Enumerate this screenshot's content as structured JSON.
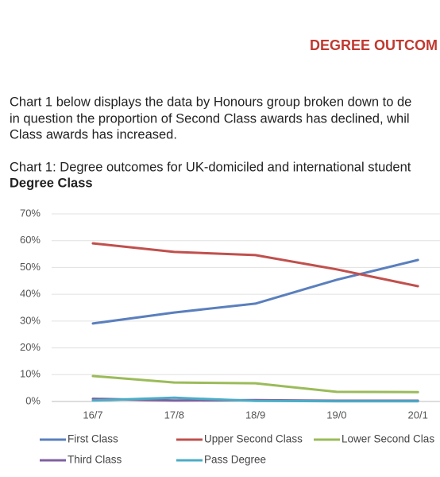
{
  "heading": "DEGREE OUTCOM",
  "paragraph": [
    "Chart 1 below displays the data by Honours group broken down to de",
    "in question the proportion of Second Class awards has declined, whil",
    "Class awards has increased."
  ],
  "chart_data": {
    "type": "line",
    "title": "Chart 1: Degree outcomes for UK-domiciled and international student",
    "subtitle": "Degree Class",
    "categories": [
      "16/7",
      "17/8",
      "18/9",
      "19/0",
      "20/1"
    ],
    "series": [
      {
        "name": "First Class",
        "color": "#5a7fbd",
        "values": [
          29.1,
          33.2,
          36.5,
          45.4,
          52.8
        ]
      },
      {
        "name": "Upper Second Class",
        "color": "#c0504d",
        "values": [
          59.0,
          55.8,
          54.6,
          49.3,
          43.0
        ]
      },
      {
        "name": "Lower Second Clas",
        "color": "#9bbb59",
        "values": [
          9.5,
          7.1,
          6.8,
          3.6,
          3.5
        ]
      },
      {
        "name": "Third Class",
        "color": "#7f60a0",
        "values": [
          1.0,
          0.4,
          0.5,
          0.3,
          0.3
        ]
      },
      {
        "name": "Pass Degree",
        "color": "#4bacc6",
        "values": [
          0.4,
          1.4,
          0.2,
          0.1,
          0.1
        ]
      }
    ],
    "ylim": [
      0,
      70
    ],
    "yticks": [
      {
        "value": 0,
        "label": "0%"
      },
      {
        "value": 10,
        "label": "10%"
      },
      {
        "value": 20,
        "label": "20%"
      },
      {
        "value": 30,
        "label": "30%"
      },
      {
        "value": 40,
        "label": "40%"
      },
      {
        "value": 50,
        "label": "50%"
      },
      {
        "value": 60,
        "label": "60%"
      },
      {
        "value": 70,
        "label": "70%"
      }
    ],
    "grid": true
  }
}
